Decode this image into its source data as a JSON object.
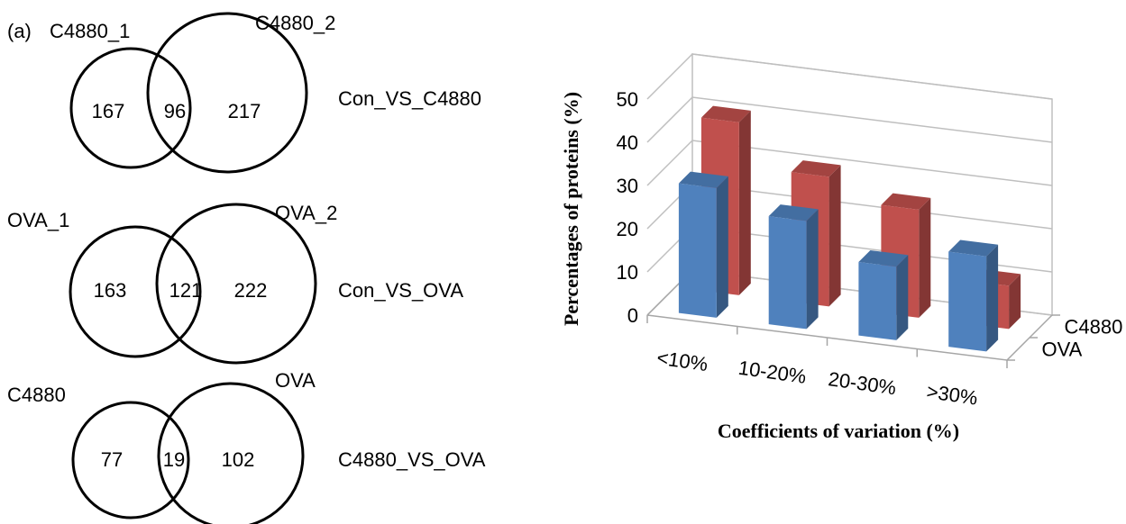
{
  "panel_label": "(a)",
  "venns": [
    {
      "left_label": "C4880_1",
      "right_label": "C4880_2",
      "left_only": "167",
      "overlap": "96",
      "right_only": "217",
      "comparison": "Con_VS_C4880"
    },
    {
      "left_label": "OVA_1",
      "right_label": "OVA_2",
      "left_only": "163",
      "overlap": "121",
      "right_only": "222",
      "comparison": "Con_VS_OVA"
    },
    {
      "left_label": "C4880",
      "right_label": "OVA",
      "left_only": "77",
      "overlap": "19",
      "right_only": "102",
      "comparison": "C4880_VS_OVA"
    }
  ],
  "chart_data": {
    "type": "bar",
    "title": "",
    "xlabel": "Coefficients of variation (%)",
    "ylabel": "Percentages of proteins (%)",
    "categories": [
      "<10%",
      "10-20%",
      "20-30%",
      ">30%"
    ],
    "yticks": [
      "0",
      "10",
      "20",
      "30",
      "40",
      "50"
    ],
    "ylim": [
      0,
      50
    ],
    "grid": true,
    "legend_placement": "depth-axis-right",
    "series": [
      {
        "name": "OVA",
        "values": [
          30,
          25,
          17,
          22
        ],
        "color": "#4f81bd"
      },
      {
        "name": "C4880",
        "values": [
          40,
          30,
          25,
          10
        ],
        "color": "#c0504d"
      }
    ]
  }
}
